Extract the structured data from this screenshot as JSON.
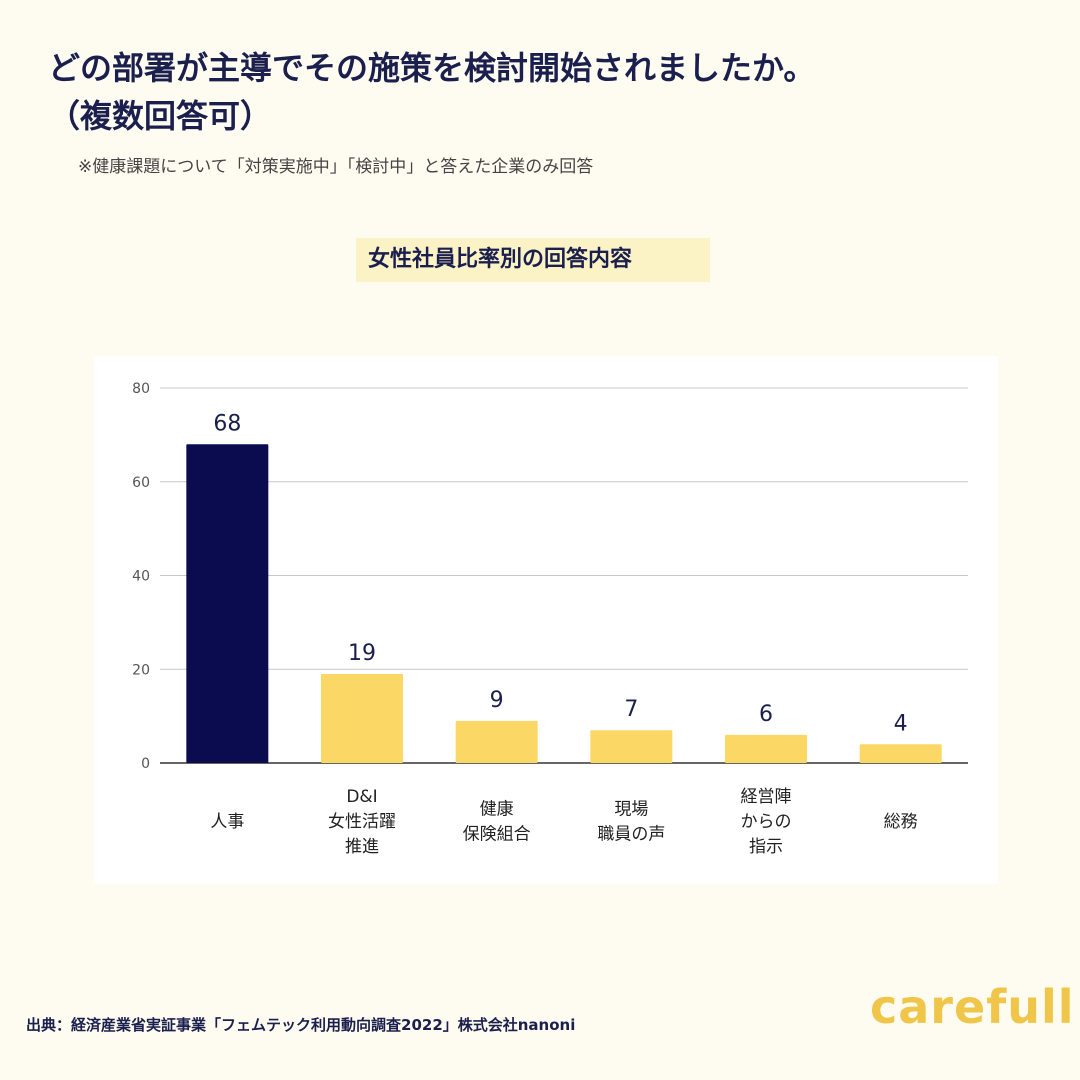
{
  "header": {
    "title_line1": "どの部署が主導でその施策を検討開始されましたか。",
    "title_line2": "（複数回答可）",
    "note": "※健康課題について「対策実施中」「検討中」と答えた企業のみ回答"
  },
  "chart_data": {
    "type": "bar",
    "subtitle": "女性社員比率別の回答内容",
    "categories": [
      [
        "人事"
      ],
      [
        "D&I",
        "女性活躍",
        "推進"
      ],
      [
        "健康",
        "保険組合"
      ],
      [
        "現場",
        "職員の声"
      ],
      [
        "経営陣",
        "からの",
        "指示"
      ],
      [
        "総務"
      ]
    ],
    "values": [
      68,
      19,
      9,
      7,
      6,
      4
    ],
    "ylim": [
      0,
      80
    ],
    "yticks": [
      0,
      20,
      40,
      60,
      80
    ],
    "grid": true,
    "data_labels": true,
    "bar_colors": [
      "#0b0b4f",
      "#fbd765",
      "#fbd765",
      "#fbd765",
      "#fbd765",
      "#fbd765"
    ]
  },
  "footer": {
    "source": "出典：経済産業省実証事業「フェムテック利用動向調査2022」株式会社nanoni",
    "logo": "carefull"
  },
  "colors": {
    "background": "#fefcf1",
    "title": "#1a1f4d",
    "accent": "#fbd765",
    "highlight": "#0b0b4f",
    "logo": "#f0c64a"
  }
}
